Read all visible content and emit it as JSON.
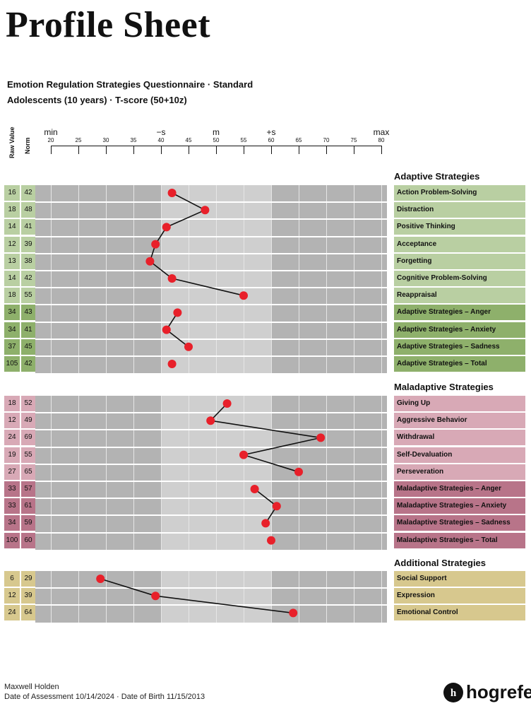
{
  "title": "Profile Sheet",
  "subtitle1": "Emotion Regulation Strategies Questionnaire · Standard",
  "subtitle2": "Adolescents (10 years) · T-score (50+10z)",
  "columns": {
    "raw": "Raw Value",
    "norm": "Norm"
  },
  "axis": {
    "ticks": [
      20,
      25,
      30,
      35,
      40,
      45,
      50,
      55,
      60,
      65,
      70,
      75,
      80
    ],
    "labels": [
      {
        "text": "min",
        "value": 20
      },
      {
        "text": "−s",
        "value": 40
      },
      {
        "text": "m",
        "value": 50
      },
      {
        "text": "+s",
        "value": 60
      },
      {
        "text": "max",
        "value": 80
      }
    ]
  },
  "colors": {
    "dot": "#e8202a",
    "adaptive_light": "#b9cfa2",
    "adaptive_dark": "#8eb06b",
    "maladaptive_light": "#d8a9b6",
    "maladaptive_dark": "#b87489",
    "additional": "#d7c88e",
    "band_outer": "#b3b3b3",
    "band_inner": "#cfcfcf"
  },
  "sections": [
    {
      "title": "Adaptive Strategies",
      "scheme": "adaptive",
      "rows": [
        {
          "label": "Action Problem-Solving",
          "raw": "16",
          "norm": "42",
          "t": 42,
          "dark": false
        },
        {
          "label": "Distraction",
          "raw": "18",
          "norm": "48",
          "t": 48,
          "dark": false
        },
        {
          "label": "Positive Thinking",
          "raw": "14",
          "norm": "41",
          "t": 41,
          "dark": false
        },
        {
          "label": "Acceptance",
          "raw": "12",
          "norm": "39",
          "t": 39,
          "dark": false
        },
        {
          "label": "Forgetting",
          "raw": "13",
          "norm": "38",
          "t": 38,
          "dark": false
        },
        {
          "label": "Cognitive Problem-Solving",
          "raw": "14",
          "norm": "42",
          "t": 42,
          "dark": false
        },
        {
          "label": "Reappraisal",
          "raw": "18",
          "norm": "55",
          "t": 55,
          "dark": false
        },
        {
          "label": "Adaptive Strategies – Anger",
          "raw": "34",
          "norm": "43",
          "t": 43,
          "dark": true
        },
        {
          "label": "Adaptive Strategies – Anxiety",
          "raw": "34",
          "norm": "41",
          "t": 41,
          "dark": true
        },
        {
          "label": "Adaptive Strategies – Sadness",
          "raw": "37",
          "norm": "45",
          "t": 45,
          "dark": true
        },
        {
          "label": "Adaptive Strategies – Total",
          "raw": "105",
          "norm": "42",
          "t": 42,
          "dark": true
        }
      ],
      "lines": [
        [
          0,
          6
        ],
        [
          7,
          9
        ],
        [
          10,
          10
        ]
      ]
    },
    {
      "title": "Maladaptive Strategies",
      "scheme": "maladaptive",
      "rows": [
        {
          "label": "Giving Up",
          "raw": "18",
          "norm": "52",
          "t": 52,
          "dark": false
        },
        {
          "label": "Aggressive Behavior",
          "raw": "12",
          "norm": "49",
          "t": 49,
          "dark": false
        },
        {
          "label": "Withdrawal",
          "raw": "24",
          "norm": "69",
          "t": 69,
          "dark": false
        },
        {
          "label": "Self-Devaluation",
          "raw": "19",
          "norm": "55",
          "t": 55,
          "dark": false
        },
        {
          "label": "Perseveration",
          "raw": "27",
          "norm": "65",
          "t": 65,
          "dark": false
        },
        {
          "label": "Maladaptive Strategies – Anger",
          "raw": "33",
          "norm": "57",
          "t": 57,
          "dark": true
        },
        {
          "label": "Maladaptive Strategies – Anxiety",
          "raw": "33",
          "norm": "61",
          "t": 61,
          "dark": true
        },
        {
          "label": "Maladaptive Strategies – Sadness",
          "raw": "34",
          "norm": "59",
          "t": 59,
          "dark": true
        },
        {
          "label": "Maladaptive Strategies – Total",
          "raw": "100",
          "norm": "60",
          "t": 60,
          "dark": true
        }
      ],
      "lines": [
        [
          0,
          4
        ],
        [
          5,
          7
        ],
        [
          8,
          8
        ]
      ]
    },
    {
      "title": "Additional Strategies",
      "scheme": "additional",
      "rows": [
        {
          "label": "Social Support",
          "raw": "6",
          "norm": "29",
          "t": 29,
          "dark": false
        },
        {
          "label": "Expression",
          "raw": "12",
          "norm": "39",
          "t": 39,
          "dark": false
        },
        {
          "label": "Emotional Control",
          "raw": "24",
          "norm": "64",
          "t": 64,
          "dark": false
        }
      ],
      "lines": [
        [
          0,
          2
        ]
      ]
    }
  ],
  "footer": {
    "name": "Maxwell Holden",
    "assessment": "Date of Assessment 10/14/2024 · Date of Birth 11/15/2013"
  },
  "logo": {
    "text": "hogrefe",
    "icon": "hogrefe-logo-icon"
  }
}
